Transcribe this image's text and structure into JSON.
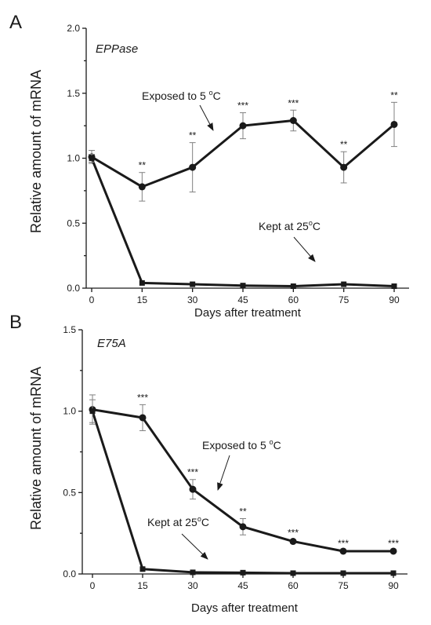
{
  "chart_data": [
    {
      "type": "line",
      "panel_label": "A",
      "gene": "EPPase",
      "title": "",
      "xlabel": "Days after treatment",
      "ylabel": "Relative amount of mRNA",
      "x": [
        0,
        15,
        30,
        45,
        60,
        75,
        90
      ],
      "x_ticks": [
        "0",
        "15",
        "30",
        "45",
        "60",
        "75",
        "90"
      ],
      "y_ticks": [
        "0.0",
        "0.5",
        "1.0",
        "1.5",
        "2.0"
      ],
      "ylim": [
        0,
        2.0
      ],
      "grid": false,
      "series": [
        {
          "name": "Exposed to 5 °C",
          "label_main": "Exposed to 5 ",
          "label_sup": "o",
          "label_unit": "C",
          "marker": "circle",
          "values": [
            1.01,
            0.78,
            0.93,
            1.25,
            1.29,
            0.93,
            1.26
          ],
          "errors": [
            0.05,
            0.11,
            0.19,
            0.1,
            0.08,
            0.12,
            0.17
          ],
          "significance": [
            "",
            "**",
            "**",
            "***",
            "***",
            "**",
            "**"
          ]
        },
        {
          "name": "Kept at 25 °C",
          "label_main": "Kept at 25",
          "label_sup": "o",
          "label_unit": "C",
          "marker": "square",
          "values": [
            1.0,
            0.04,
            0.03,
            0.02,
            0.015,
            0.03,
            0.015
          ],
          "errors": [
            0.03,
            0,
            0,
            0,
            0,
            0,
            0
          ],
          "significance": [
            "",
            "",
            "",
            "",
            "",
            "",
            ""
          ]
        }
      ]
    },
    {
      "type": "line",
      "panel_label": "B",
      "gene": "E75A",
      "title": "",
      "xlabel": "Days after treatment",
      "ylabel": "Relative amount of mRNA",
      "x": [
        0,
        15,
        30,
        45,
        60,
        75,
        90
      ],
      "x_ticks": [
        "0",
        "15",
        "30",
        "45",
        "60",
        "75",
        "90"
      ],
      "y_ticks": [
        "0.0",
        "0.5",
        "1.0",
        "1.5"
      ],
      "ylim": [
        0,
        1.5
      ],
      "grid": false,
      "series": [
        {
          "name": "Exposed to 5 °C",
          "label_main": "Exposed to 5 ",
          "label_sup": "o",
          "label_unit": "C",
          "marker": "circle",
          "values": [
            1.01,
            0.96,
            0.52,
            0.29,
            0.2,
            0.14,
            0.14
          ],
          "errors": [
            0.09,
            0.08,
            0.06,
            0.05,
            0.01,
            0.005,
            0.005
          ],
          "significance": [
            "",
            "***",
            "***",
            "**",
            "***",
            "***",
            "***"
          ]
        },
        {
          "name": "Kept at 25 °C",
          "label_main": "Kept at 25",
          "label_sup": "o",
          "label_unit": "C",
          "marker": "square",
          "values": [
            1.0,
            0.03,
            0.01,
            0.008,
            0.005,
            0.005,
            0.005
          ],
          "errors": [
            0.07,
            0,
            0,
            0,
            0,
            0,
            0
          ],
          "significance": [
            "",
            "",
            "",
            "",
            "",
            "",
            ""
          ]
        }
      ]
    }
  ]
}
